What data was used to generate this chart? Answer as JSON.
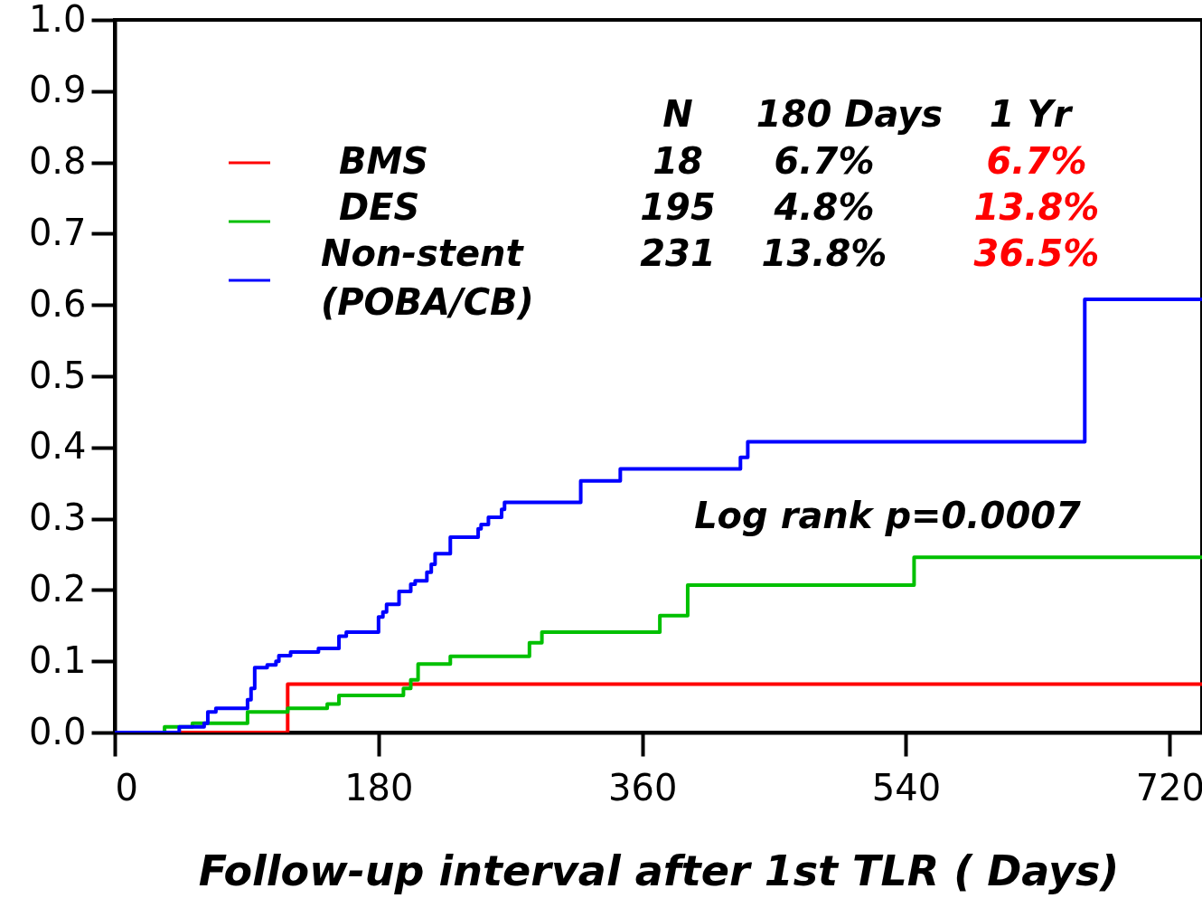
{
  "chart_data": {
    "type": "step",
    "xlabel": "Follow-up interval after 1st TLR ( Days)",
    "xlim": [
      0,
      742
    ],
    "xticks": [
      0,
      180,
      360,
      540,
      720
    ],
    "ylim": [
      0,
      1
    ],
    "yticks": [
      {
        "value": 0,
        "label": "0.0"
      },
      0.1,
      0.2,
      0.3,
      0.4,
      0.5,
      0.6,
      0.7,
      0.8,
      0.9,
      {
        "value": 1,
        "label": "1.0"
      }
    ],
    "grid": false,
    "legend": "top left",
    "marker": "none",
    "line_style": "solid",
    "series": [
      {
        "name": "BMS",
        "color": "#ff0000",
        "x": [
          0,
          118,
          742
        ],
        "values": [
          0,
          0.068,
          0.068
        ]
      },
      {
        "name": "DES",
        "color": "#00c000",
        "x": [
          0,
          34,
          53,
          90.6,
          118,
          145,
          153,
          197,
          202,
          207,
          229,
          283,
          291.5,
          372,
          391,
          545.5,
          742
        ],
        "values": [
          0,
          0.008,
          0.013,
          0.029,
          0.034,
          0.04,
          0.052,
          0.062,
          0.074,
          0.096,
          0.107,
          0.126,
          0.141,
          0.164,
          0.207,
          0.246,
          0.246
        ]
      },
      {
        "name": "Non-stent (POBA/CB)",
        "color": "#0000ff",
        "x": [
          0,
          44,
          61,
          63.5,
          69,
          90.6,
          93,
          95.5,
          104,
          110,
          112,
          120,
          139,
          153,
          158,
          180,
          183,
          185.5,
          194,
          202,
          205,
          213,
          216,
          218.6,
          229,
          248,
          250,
          255,
          264,
          266,
          318,
          345,
          427,
          432,
          662,
          742
        ],
        "values": [
          0,
          0.008,
          0.013,
          0.029,
          0.034,
          0.046,
          0.062,
          0.091,
          0.095,
          0.1,
          0.108,
          0.113,
          0.118,
          0.135,
          0.141,
          0.162,
          0.169,
          0.18,
          0.198,
          0.208,
          0.213,
          0.225,
          0.236,
          0.251,
          0.274,
          0.286,
          0.292,
          0.302,
          0.313,
          0.323,
          0.353,
          0.37,
          0.386,
          0.408,
          0.608,
          0.608
        ]
      }
    ],
    "annotations": [
      "N",
      "180 Days",
      "1 Yr",
      "18",
      "6.7%",
      "6.7%",
      "195",
      "4.8%",
      "13.8%",
      "231",
      "13.8%",
      "36.5%",
      "Log rank p=0.0007"
    ]
  }
}
